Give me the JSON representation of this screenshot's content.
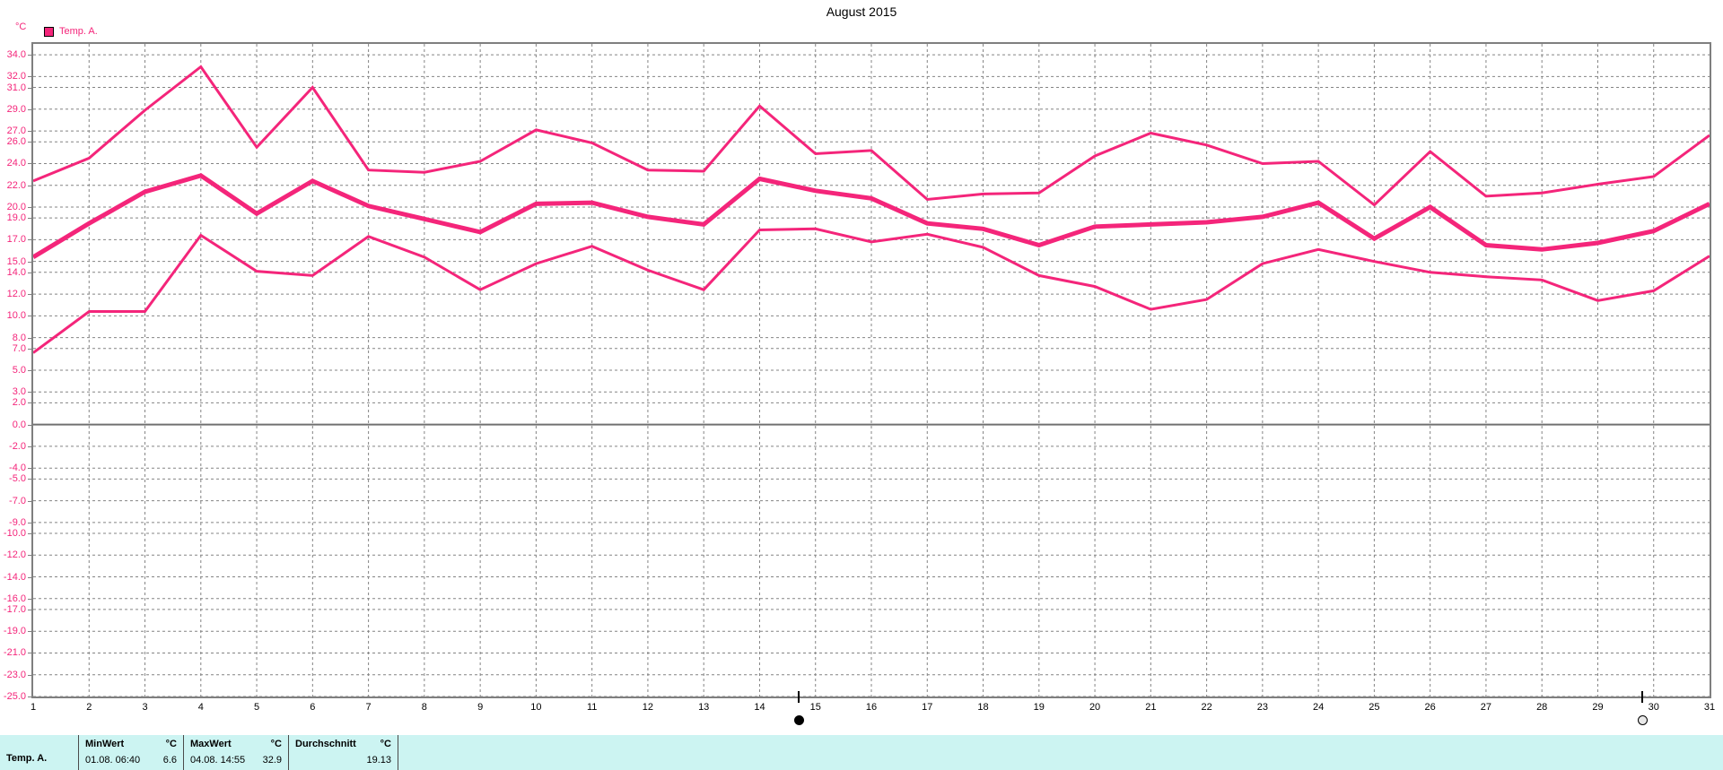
{
  "title": "August 2015",
  "colors": {
    "accent": "#F4257A",
    "grid": "#848484",
    "axis": "#7F7F7F",
    "zero_line": "#707070",
    "footer_bg": "#CCF4F2",
    "marker": "#000000"
  },
  "y_axis": {
    "unit": "°C",
    "ticks": [
      34,
      32,
      31,
      29,
      27,
      26,
      24,
      22,
      20,
      19,
      17,
      15,
      14,
      12,
      10,
      8,
      7,
      5,
      3,
      2,
      0,
      -2,
      -4,
      -5,
      -7,
      -9,
      -10,
      -12,
      -14,
      -16,
      -17,
      -19,
      -21,
      -23,
      -25
    ]
  },
  "legend": {
    "label": "Temp. A."
  },
  "chart_data": {
    "type": "line",
    "title": "August 2015",
    "ylabel": "°C",
    "ylim": [
      -25,
      35
    ],
    "grid": true,
    "legend_position": "top-left",
    "x": [
      1,
      2,
      3,
      4,
      5,
      6,
      7,
      8,
      9,
      10,
      11,
      12,
      13,
      14,
      15,
      16,
      17,
      18,
      19,
      20,
      21,
      22,
      23,
      24,
      25,
      26,
      27,
      28,
      29,
      30,
      31
    ],
    "series": [
      {
        "name": "Temp. A. daily maximum",
        "stroke_width": 3,
        "values": [
          22.4,
          24.5,
          28.9,
          32.9,
          25.5,
          31.0,
          23.4,
          23.2,
          24.2,
          27.1,
          25.9,
          23.4,
          23.3,
          29.3,
          24.9,
          25.2,
          20.7,
          21.2,
          21.3,
          24.7,
          26.8,
          25.7,
          24.0,
          24.2,
          20.2,
          25.1,
          21.0,
          21.3,
          22.1,
          22.8,
          26.6
        ]
      },
      {
        "name": "Temp. A. daily mean",
        "stroke_width": 5,
        "values": [
          15.4,
          18.5,
          21.4,
          22.9,
          19.4,
          22.4,
          20.1,
          18.9,
          17.7,
          20.3,
          20.4,
          19.1,
          18.4,
          22.6,
          21.5,
          20.8,
          18.5,
          18.0,
          16.5,
          18.2,
          18.4,
          18.6,
          19.1,
          20.4,
          17.1,
          20.0,
          16.5,
          16.1,
          16.7,
          17.8,
          20.3
        ]
      },
      {
        "name": "Temp. A. daily minimum",
        "stroke_width": 3,
        "values": [
          6.6,
          10.4,
          10.4,
          17.4,
          14.1,
          13.7,
          17.3,
          15.4,
          12.4,
          14.8,
          16.4,
          14.2,
          12.4,
          17.9,
          18.0,
          16.8,
          17.5,
          16.3,
          13.7,
          12.7,
          10.6,
          11.5,
          14.8,
          16.1,
          15.0,
          14.0,
          13.6,
          13.3,
          11.4,
          12.3,
          15.5
        ]
      }
    ]
  },
  "markers": [
    {
      "shape": "filled-circle",
      "day": 14.7
    },
    {
      "shape": "open-circle",
      "day": 29.8
    }
  ],
  "footer": {
    "series_label": "Temp. A.",
    "min": {
      "header": "MinWert",
      "unit": "°C",
      "time": "01.08.  06:40",
      "value": "6.6"
    },
    "max": {
      "header": "MaxWert",
      "unit": "°C",
      "time": "04.08.  14:55",
      "value": "32.9"
    },
    "avg": {
      "header": "Durchschnitt",
      "unit": "°C",
      "value": "19.13"
    }
  }
}
